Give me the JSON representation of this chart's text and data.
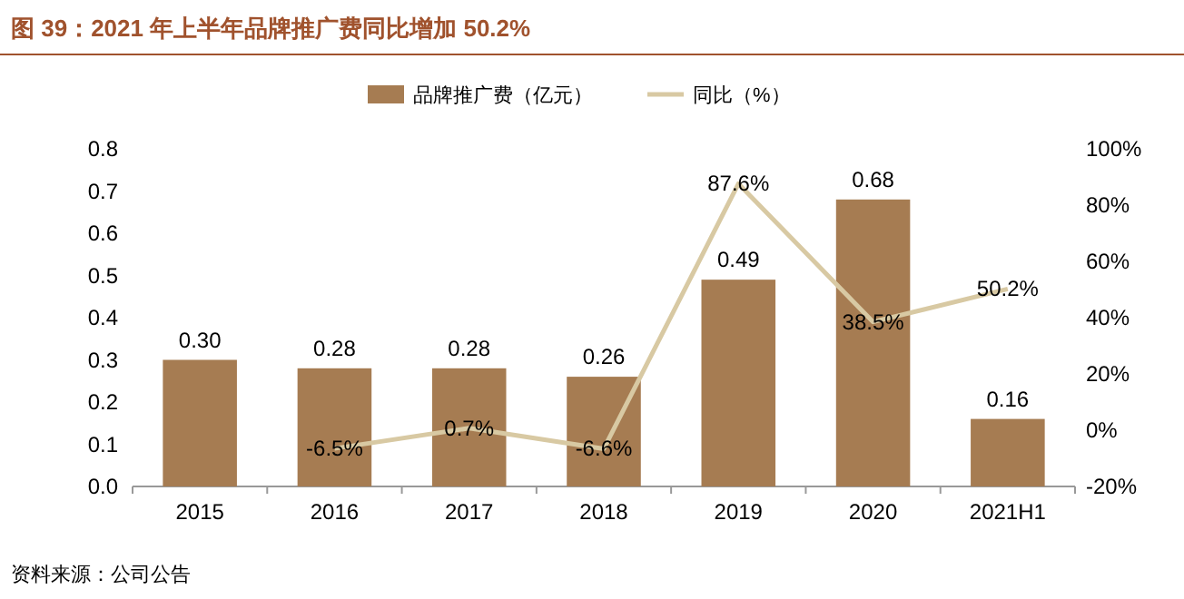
{
  "chart_data": {
    "type": "bar",
    "title": "图 39：2021 年上半年品牌推广费同比增加 50.2%",
    "categories": [
      "2015",
      "2016",
      "2017",
      "2018",
      "2019",
      "2020",
      "2021H1"
    ],
    "series": [
      {
        "name": "品牌推广费（亿元）",
        "color": "#a67c52",
        "values": [
          0.3,
          0.28,
          0.28,
          0.26,
          0.49,
          0.68,
          0.16
        ],
        "value_labels": [
          "0.30",
          "0.28",
          "0.28",
          "0.26",
          "0.49",
          "0.68",
          "0.16"
        ]
      },
      {
        "name": "同比（%）",
        "type": "line",
        "axis": "y2",
        "color": "#d8c9a3",
        "values": [
          null,
          -6.5,
          0.7,
          -6.6,
          87.6,
          38.5,
          50.2
        ],
        "value_labels": [
          null,
          "-6.5%",
          "0.7%",
          "-6.6%",
          "87.6%",
          "38.5%",
          "50.2%"
        ]
      }
    ],
    "ylim": [
      0,
      0.8
    ],
    "yticks": [
      {
        "value": 0,
        "label": "0.0"
      },
      0.1,
      0.2,
      0.3,
      0.4,
      0.5,
      0.6,
      0.7,
      0.8
    ],
    "y2lim": [
      -20,
      100
    ],
    "y2ticks": [
      {
        "value": -20,
        "label": "-20%"
      },
      {
        "value": 0,
        "label": "0%"
      },
      {
        "value": 20,
        "label": "20%"
      },
      {
        "value": 40,
        "label": "40%"
      },
      {
        "value": 60,
        "label": "60%"
      },
      {
        "value": 80,
        "label": "80%"
      },
      {
        "value": 100,
        "label": "100%"
      }
    ],
    "legend": "top",
    "grid": false,
    "marker": "none",
    "line_style": "solid",
    "annotations": [
      "资料来源：公司公告"
    ]
  }
}
